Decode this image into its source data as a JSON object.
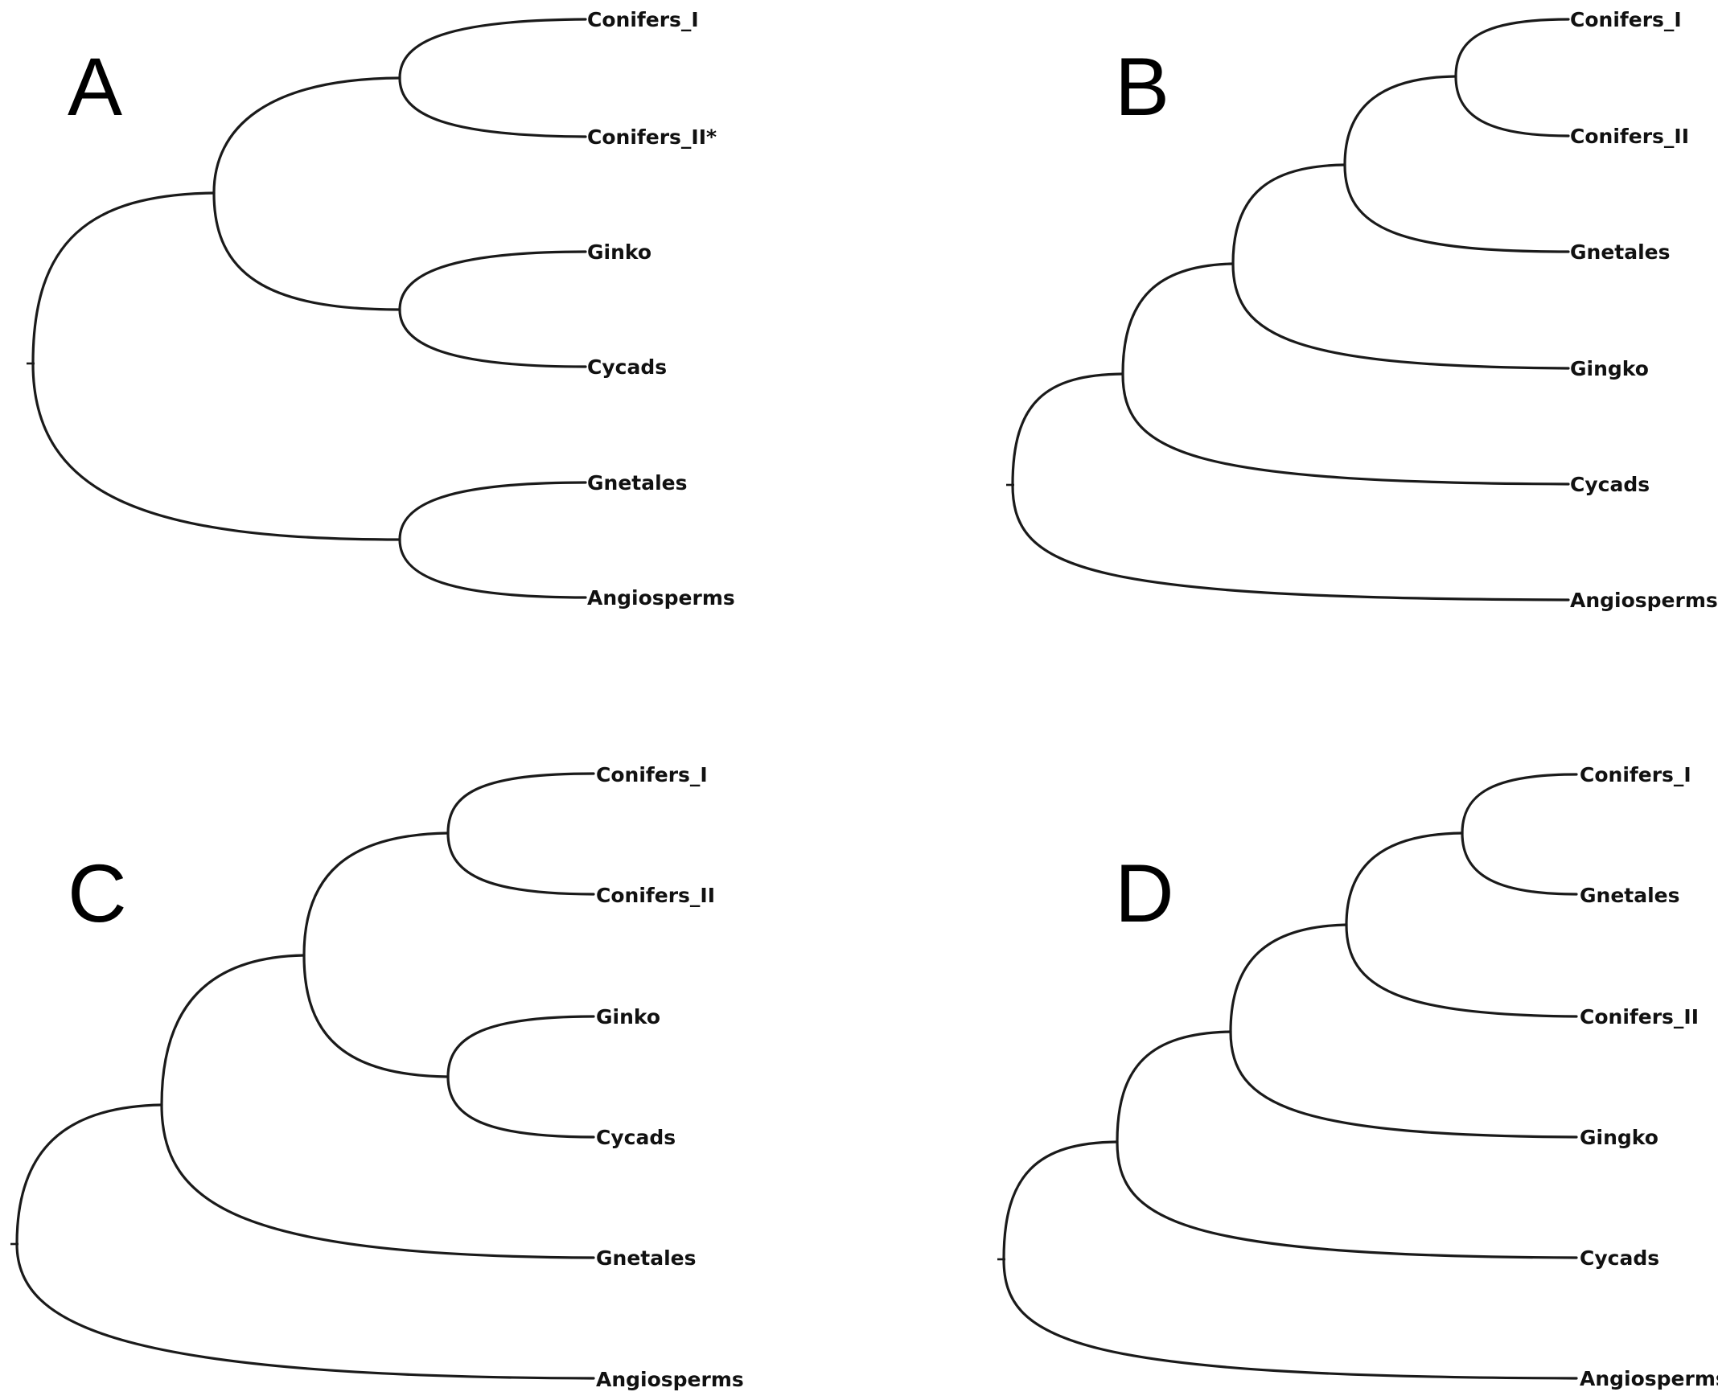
{
  "figure": {
    "colors": {
      "branch": "#1a1a1a",
      "text": "#111111",
      "background": "#ffffff"
    },
    "panels": [
      {
        "id": "A",
        "letter": "A",
        "leaves": [
          "Conifers_I",
          "Conifers_II*",
          "Ginko",
          "Cycads",
          "Gnetales",
          "Angiosperms"
        ],
        "topology": "(((Conifers_I,Conifers_II*),(Ginko,Cycads)),(Gnetales,Angiosperms))"
      },
      {
        "id": "B",
        "letter": "B",
        "leaves": [
          "Conifers_I",
          "Conifers_II",
          "Gnetales",
          "Gingko",
          "Cycads",
          "Angiosperms"
        ],
        "topology": "(((((Conifers_I,Conifers_II),Gnetales),Gingko),Cycads),Angiosperms)"
      },
      {
        "id": "C",
        "letter": "C",
        "leaves": [
          "Conifers_I",
          "Conifers_II",
          "Ginko",
          "Cycads",
          "Gnetales",
          "Angiosperms"
        ],
        "topology": "((((Conifers_I,Conifers_II),(Ginko,Cycads)),Gnetales),Angiosperms)"
      },
      {
        "id": "D",
        "letter": "D",
        "leaves": [
          "Conifers_I",
          "Gnetales",
          "Conifers_II",
          "Gingko",
          "Cycads",
          "Angiosperms"
        ],
        "topology": "(((((Conifers_I,Gnetales),Conifers_II),Gingko),Cycads),Angiosperms)"
      }
    ]
  }
}
